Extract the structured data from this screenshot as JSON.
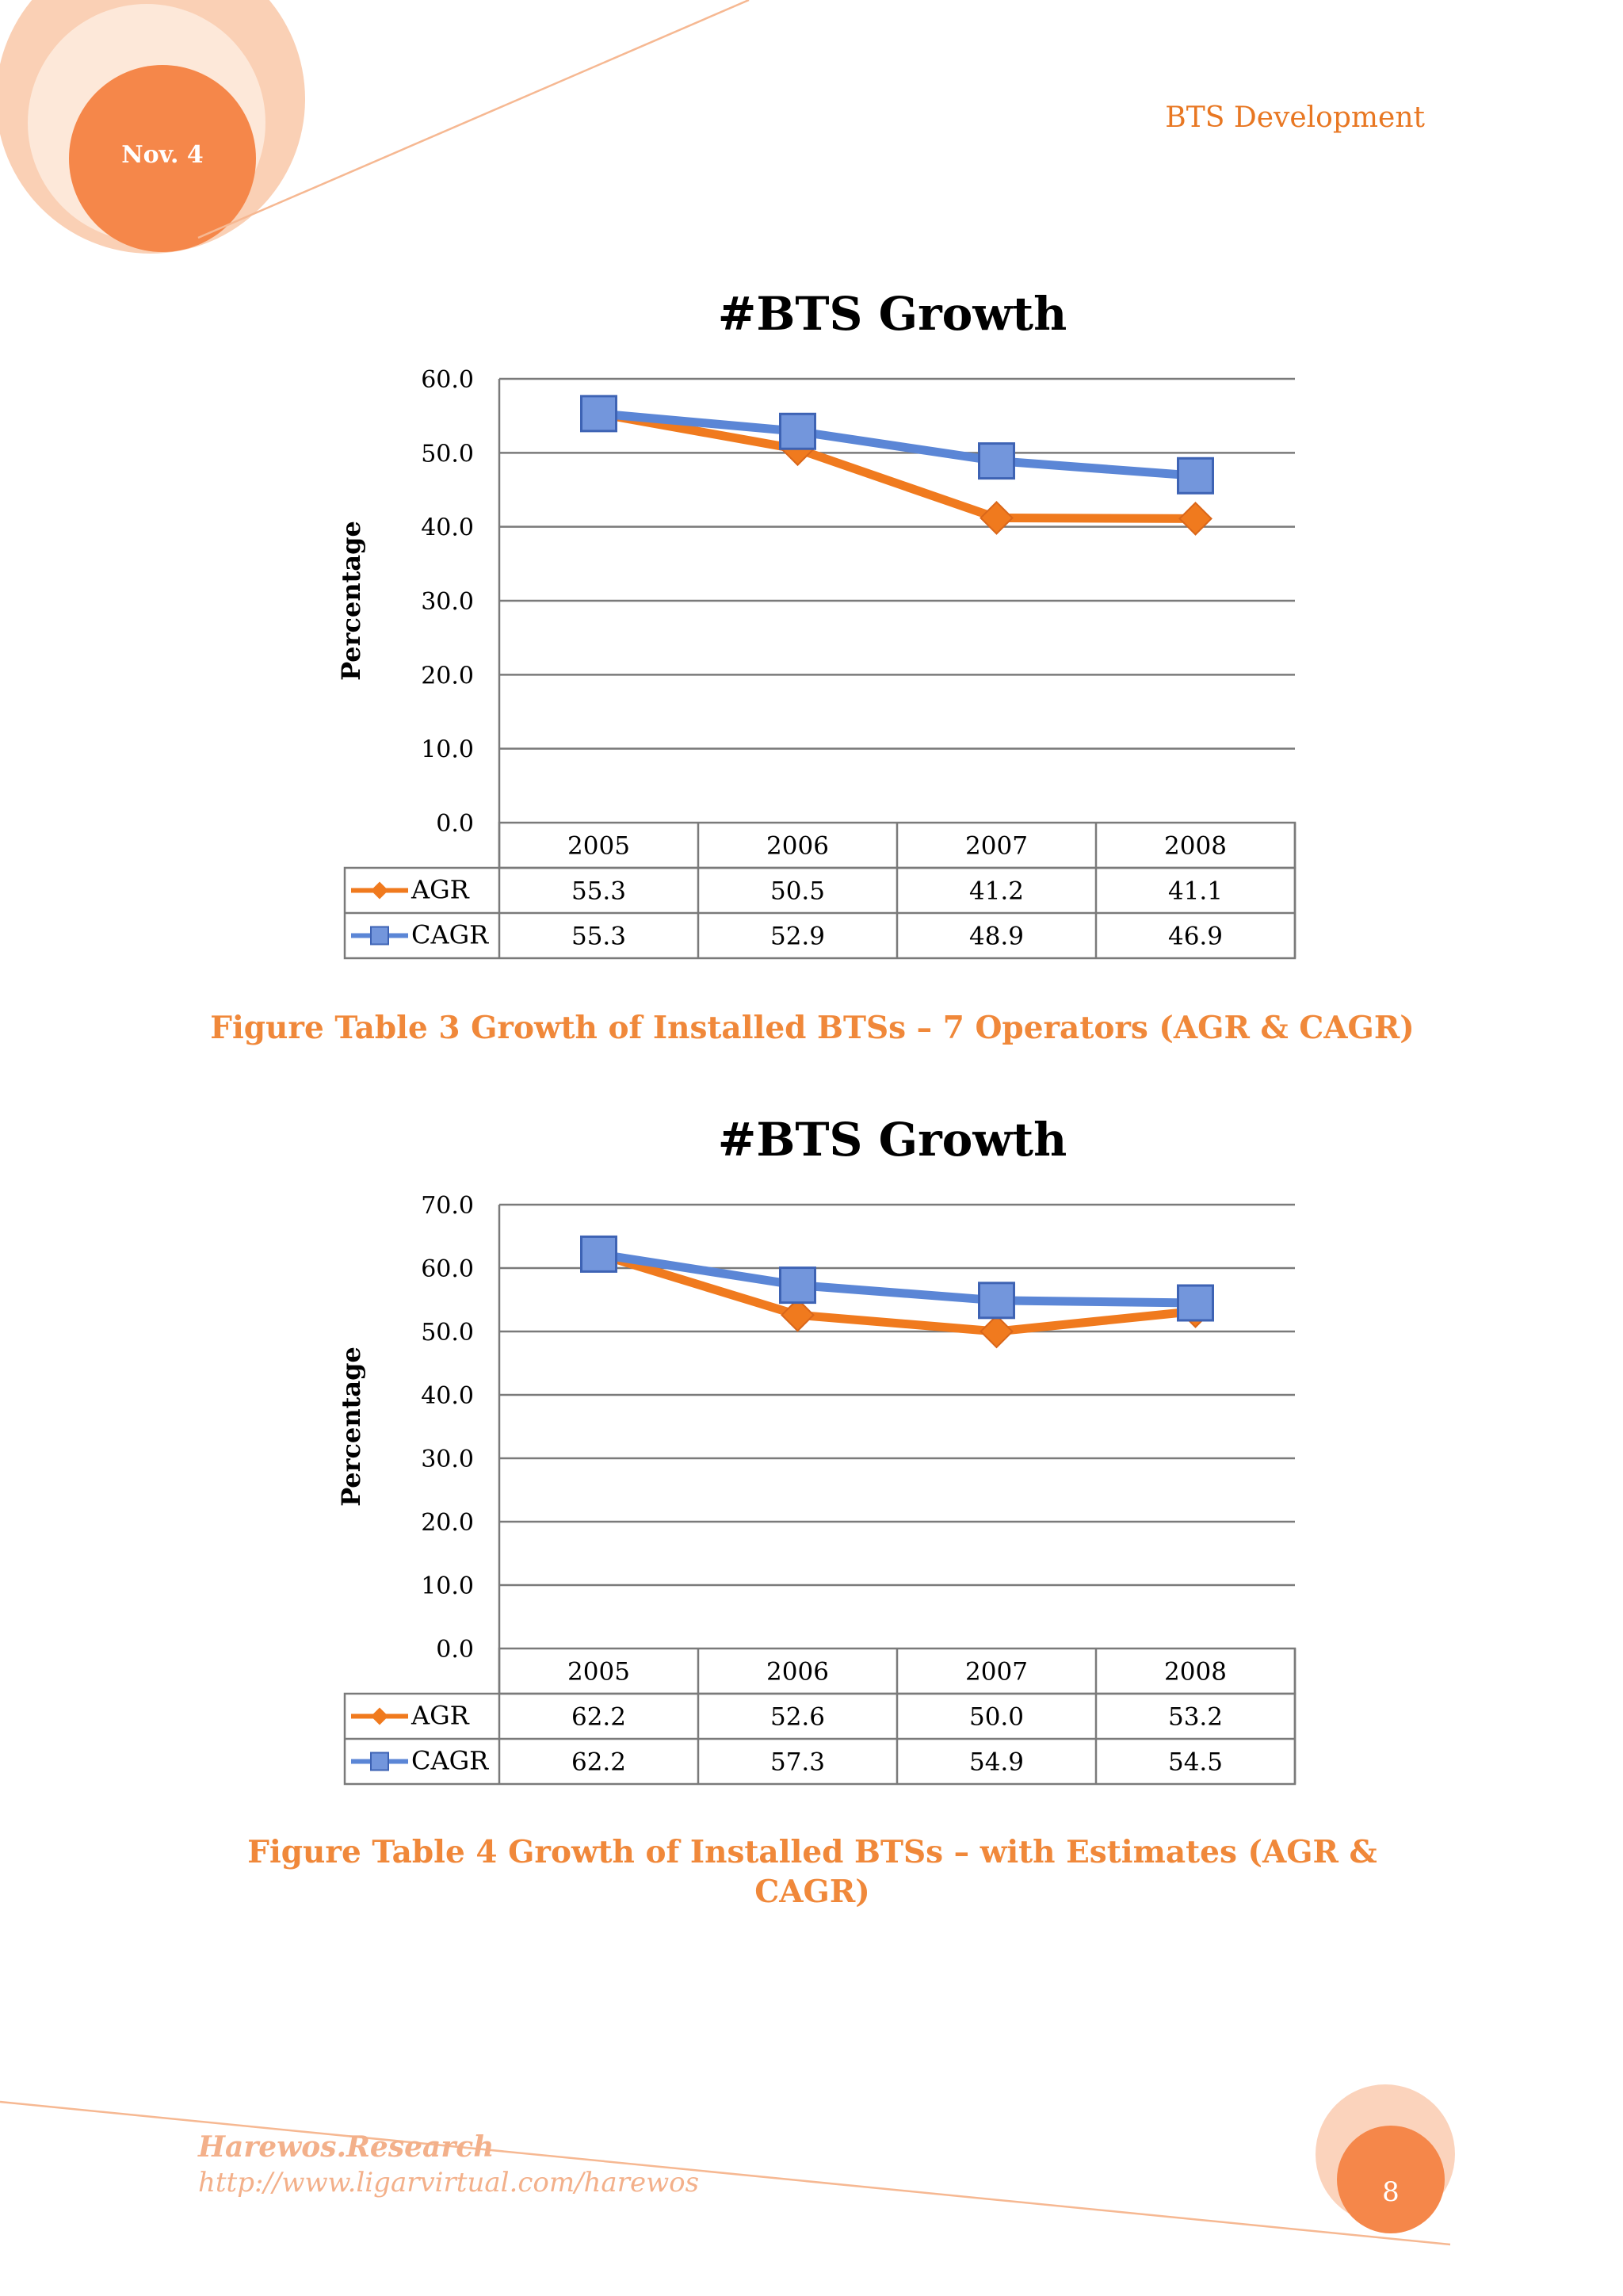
{
  "header": {
    "date_label": "Nov. 4",
    "section_title": "BTS Development"
  },
  "colors": {
    "accent": "#E87722",
    "caption": "#F0883A",
    "agr": "#F07A1E",
    "cagr": "#5B86D6",
    "cagr_marker": "#7396DC"
  },
  "chart_data": [
    {
      "type": "line",
      "title": "#BTS Growth",
      "xlabel": "",
      "ylabel": "Percentage",
      "categories": [
        "2005",
        "2006",
        "2007",
        "2008"
      ],
      "ylim": [
        0,
        60
      ],
      "yticks": [
        "0.0",
        "10.0",
        "20.0",
        "30.0",
        "40.0",
        "50.0",
        "60.0"
      ],
      "grid": true,
      "legend": "data-table-below",
      "series": [
        {
          "name": "AGR",
          "marker": "diamond",
          "values": [
            55.3,
            50.5,
            41.2,
            41.1
          ],
          "labels": [
            "55.3",
            "50.5",
            "41.2",
            "41.1"
          ]
        },
        {
          "name": "CAGR",
          "marker": "square",
          "values": [
            55.3,
            52.9,
            48.9,
            46.9
          ],
          "labels": [
            "55.3",
            "52.9",
            "48.9",
            "46.9"
          ]
        }
      ]
    },
    {
      "type": "line",
      "title": "#BTS Growth",
      "xlabel": "",
      "ylabel": "Percentage",
      "categories": [
        "2005",
        "2006",
        "2007",
        "2008"
      ],
      "ylim": [
        0,
        70
      ],
      "yticks": [
        "0.0",
        "10.0",
        "20.0",
        "30.0",
        "40.0",
        "50.0",
        "60.0",
        "70.0"
      ],
      "grid": true,
      "legend": "data-table-below",
      "series": [
        {
          "name": "AGR",
          "marker": "diamond",
          "values": [
            62.2,
            52.6,
            50.0,
            53.2
          ],
          "labels": [
            "62.2",
            "52.6",
            "50.0",
            "53.2"
          ]
        },
        {
          "name": "CAGR",
          "marker": "square",
          "values": [
            62.2,
            57.3,
            54.9,
            54.5
          ],
          "labels": [
            "62.2",
            "57.3",
            "54.9",
            "54.5"
          ]
        }
      ]
    }
  ],
  "captions": [
    "Figure Table 3 Growth of Installed BTSs – 7 Operators (AGR & CAGR)",
    "Figure Table 4 Growth of Installed BTSs – with Estimates (AGR & CAGR)"
  ],
  "footer": {
    "org": "Harewos.Research",
    "url": "http://www.ligarvirtual.com/harewos",
    "page_number": "8"
  }
}
